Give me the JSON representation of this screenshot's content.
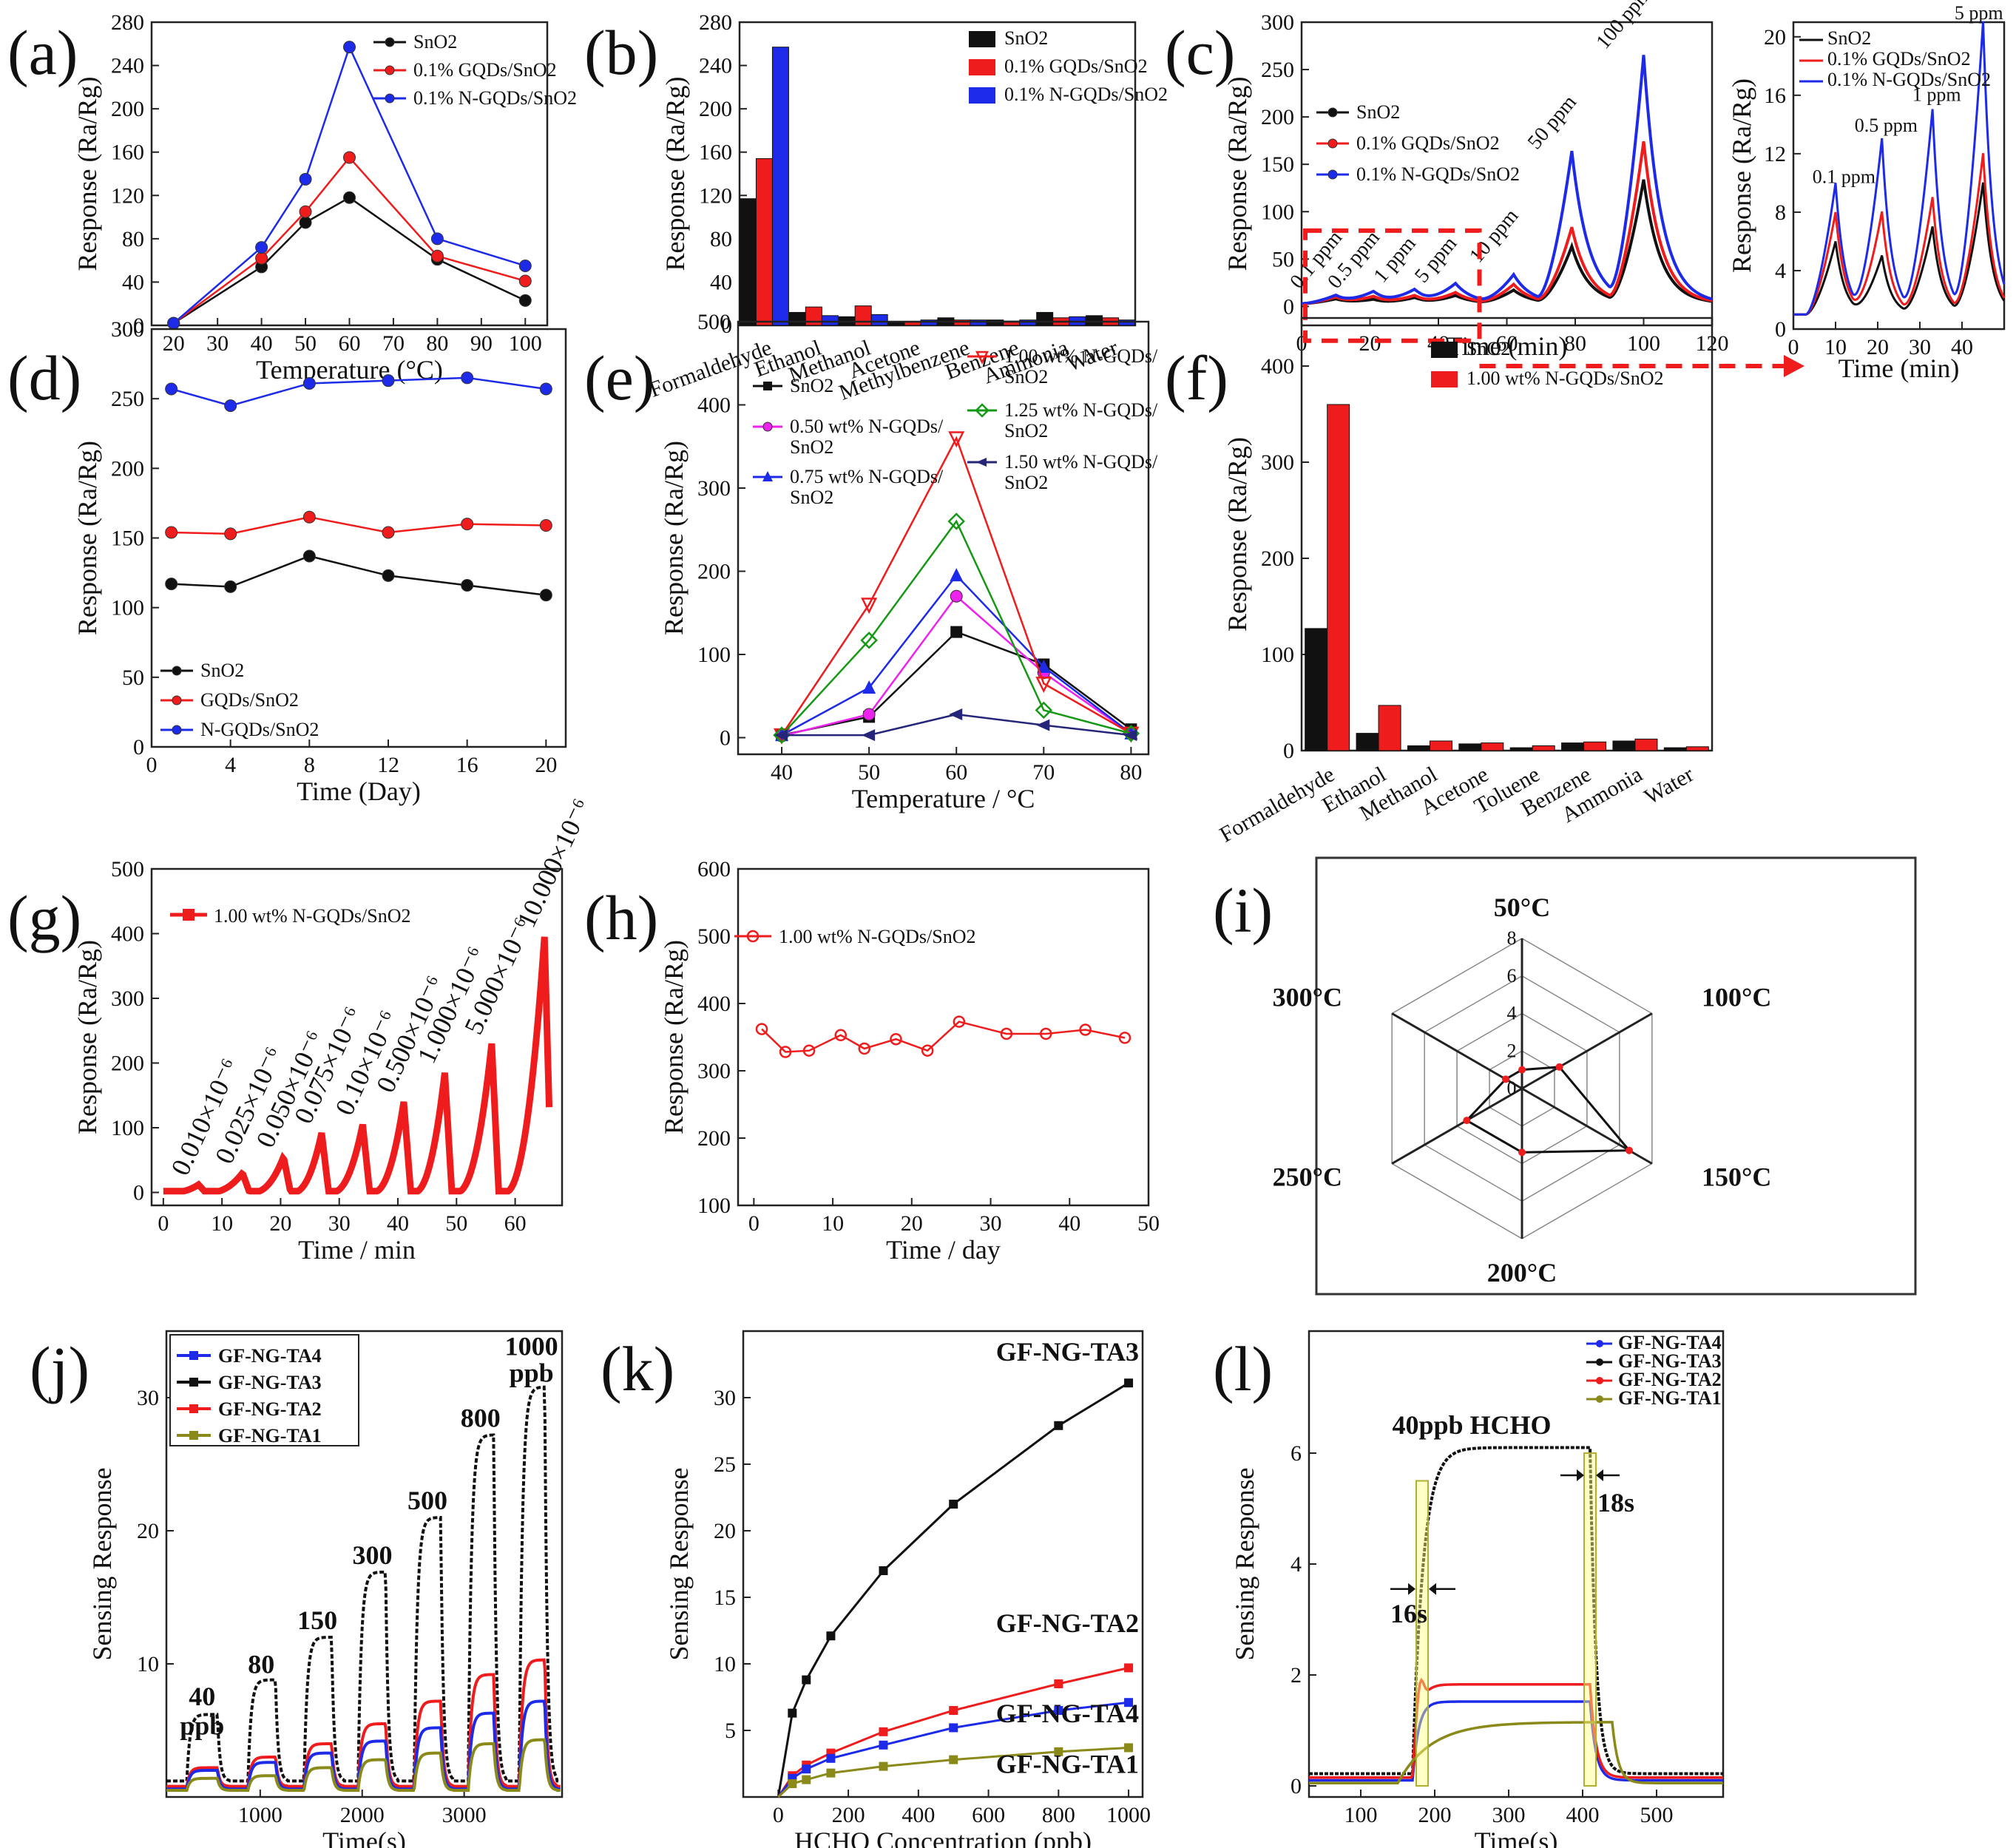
{
  "colors": {
    "black": "#111111",
    "red": "#ee1c1c",
    "blue": "#1d2be8",
    "olive": "#8a8a1a",
    "magenta": "#ee22ee",
    "green": "#159915",
    "navy": "#25257a"
  },
  "chart_data": [
    {
      "id": "a",
      "panel_label": "(a)",
      "type": "line",
      "xlabel": "Temperature (°C)",
      "ylabel": "Response (Ra/Rg)",
      "xlim": [
        15,
        105
      ],
      "ylim": [
        0,
        280
      ],
      "xticks": [
        20,
        30,
        40,
        50,
        60,
        70,
        80,
        90,
        100
      ],
      "yticks": [
        0,
        40,
        80,
        120,
        160,
        200,
        240,
        280
      ],
      "x": [
        20,
        40,
        50,
        60,
        80,
        100
      ],
      "series": [
        {
          "name": "SnO2",
          "color": "#111111",
          "marker": "circle",
          "values": [
            2,
            54,
            95,
            118,
            61,
            23
          ]
        },
        {
          "name": "0.1% GQDs/SnO2",
          "color": "#ee1c1c",
          "marker": "circle",
          "values": [
            2,
            62,
            105,
            155,
            64,
            41
          ]
        },
        {
          "name": "0.1% N-GQDs/SnO2",
          "color": "#1d2be8",
          "marker": "circle",
          "values": [
            2,
            72,
            135,
            257,
            80,
            55
          ]
        }
      ],
      "legend": "top-right"
    },
    {
      "id": "b",
      "panel_label": "(b)",
      "type": "bar",
      "xlabel": "",
      "ylabel": "Response (Ra/Rg)",
      "ylim": [
        0,
        280
      ],
      "yticks": [
        0,
        40,
        80,
        120,
        160,
        200,
        240,
        280
      ],
      "categories": [
        "Formaldehyde",
        "Ethanol",
        "Methanol",
        "Acetone",
        "Methylbenzene",
        "Benzene",
        "Ammonia",
        "Water"
      ],
      "series": [
        {
          "name": "SnO2",
          "color": "#111111",
          "values": [
            117,
            12,
            8,
            3,
            7,
            5,
            12,
            9
          ]
        },
        {
          "name": "0.1% GQDs/SnO2",
          "color": "#ee1c1c",
          "values": [
            154,
            17,
            18,
            3,
            5,
            4,
            7,
            7
          ]
        },
        {
          "name": "0.1% N-GQDs/SnO2",
          "color": "#1d2be8",
          "values": [
            257,
            9,
            10,
            5,
            5,
            5,
            8,
            5
          ]
        }
      ],
      "legend": "top-right"
    },
    {
      "id": "c",
      "panel_label": "(c)",
      "type": "line",
      "xlabel": "Time (min)",
      "ylabel": "Response (Ra/Rg)",
      "xlim": [
        0,
        120
      ],
      "ylim": [
        -20,
        300
      ],
      "xticks": [
        0,
        20,
        40,
        60,
        80,
        100,
        120
      ],
      "yticks": [
        0,
        50,
        100,
        150,
        200,
        250,
        300
      ],
      "pulses": [
        {
          "t": 10,
          "peak": [
            5,
            7,
            9
          ]
        },
        {
          "t": 21,
          "peak": [
            4,
            7,
            12
          ]
        },
        {
          "t": 33,
          "peak": [
            6,
            8,
            14
          ]
        },
        {
          "t": 45,
          "peak": [
            8,
            11,
            20
          ]
        },
        {
          "t": 62,
          "peak": [
            14,
            20,
            30
          ]
        },
        {
          "t": 79,
          "peak": [
            60,
            80,
            160
          ]
        },
        {
          "t": 100,
          "peak": [
            130,
            170,
            260
          ]
        }
      ],
      "annotations": [
        "0.1 ppm",
        "0.5 ppm",
        "1 ppm",
        "5 ppm",
        "10 ppm",
        "50 ppm",
        "100 ppm"
      ],
      "series": [
        {
          "name": "SnO2",
          "color": "#111111"
        },
        {
          "name": "0.1% GQDs/SnO2",
          "color": "#ee1c1c"
        },
        {
          "name": "0.1% N-GQDs/SnO2",
          "color": "#1d2be8"
        }
      ],
      "legend": "left"
    },
    {
      "id": "c2",
      "panel_label": "",
      "type": "line",
      "xlabel": "Time (min)",
      "ylabel": "Response (Ra/Rg)",
      "xlim": [
        0,
        50
      ],
      "ylim": [
        0,
        21
      ],
      "xticks": [
        0,
        10,
        20,
        30,
        40
      ],
      "yticks": [
        0,
        4,
        8,
        12,
        16,
        20
      ],
      "pulses": [
        {
          "t": 10,
          "peak": [
            5,
            7,
            9
          ]
        },
        {
          "t": 21,
          "peak": [
            4,
            7,
            12
          ]
        },
        {
          "t": 33,
          "peak": [
            6,
            8,
            14
          ]
        },
        {
          "t": 45,
          "peak": [
            9,
            11,
            20
          ]
        }
      ],
      "annotations": [
        "0.1 ppm",
        "0.5 ppm",
        "1 ppm",
        "5 ppm"
      ],
      "series": [
        {
          "name": "SnO2",
          "color": "#111111"
        },
        {
          "name": "0.1% GQDs/SnO2",
          "color": "#ee1c1c"
        },
        {
          "name": "0.1% N-GQDs/SnO2",
          "color": "#1d2be8"
        }
      ],
      "legend": "top-left"
    },
    {
      "id": "d",
      "panel_label": "(d)",
      "type": "line",
      "xlabel": "Time (Day)",
      "ylabel": "Response (Ra/Rg)",
      "xlim": [
        0,
        21
      ],
      "ylim": [
        0,
        300
      ],
      "xticks": [
        0,
        4,
        8,
        12,
        16,
        20
      ],
      "yticks": [
        0,
        50,
        100,
        150,
        200,
        250,
        300
      ],
      "x": [
        1,
        4,
        8,
        12,
        16,
        20
      ],
      "series": [
        {
          "name": "SnO2",
          "color": "#111111",
          "marker": "circle",
          "values": [
            117,
            115,
            137,
            123,
            116,
            109
          ]
        },
        {
          "name": "GQDs/SnO2",
          "color": "#ee1c1c",
          "marker": "circle",
          "values": [
            154,
            153,
            165,
            154,
            160,
            159
          ]
        },
        {
          "name": "N-GQDs/SnO2",
          "color": "#1d2be8",
          "marker": "circle",
          "values": [
            257,
            245,
            261,
            263,
            265,
            257
          ]
        }
      ],
      "legend": "bottom-left"
    },
    {
      "id": "e",
      "panel_label": "(e)",
      "type": "line",
      "xlabel": "Temperature / °C",
      "ylabel": "Response (Ra/Rg)",
      "xlim": [
        35,
        82
      ],
      "ylim": [
        -20,
        500
      ],
      "xticks": [
        40,
        50,
        60,
        70,
        80
      ],
      "yticks": [
        0,
        100,
        200,
        300,
        400,
        500
      ],
      "x": [
        40,
        50,
        60,
        70,
        80
      ],
      "series": [
        {
          "name": "SnO2",
          "color": "#111111",
          "marker": "square",
          "values": [
            3,
            25,
            127,
            88,
            10
          ]
        },
        {
          "name": "0.50 wt% N-GQDs/ SnO2",
          "color": "#ee22ee",
          "marker": "circle",
          "values": [
            2,
            28,
            170,
            78,
            5
          ]
        },
        {
          "name": "0.75 wt% N-GQDs/ SnO2",
          "color": "#1d2be8",
          "marker": "triangle-up",
          "values": [
            3,
            60,
            195,
            85,
            5
          ]
        },
        {
          "name": "1.00 wt% N-GQDs/ SnO2",
          "color": "#ee1c1c",
          "marker": "triangle-down",
          "values": [
            3,
            160,
            360,
            65,
            5
          ]
        },
        {
          "name": "1.25 wt% N-GQDs/ SnO2",
          "color": "#159915",
          "marker": "diamond",
          "values": [
            3,
            117,
            260,
            33,
            5
          ]
        },
        {
          "name": "1.50 wt% N-GQDs/ SnO2",
          "color": "#25257a",
          "marker": "triangle-left",
          "values": [
            3,
            3,
            28,
            15,
            3
          ]
        }
      ],
      "legend": "top"
    },
    {
      "id": "f",
      "panel_label": "(f)",
      "type": "bar",
      "xlabel": "",
      "ylabel": "Response (Ra/Rg)",
      "ylim": [
        0,
        450
      ],
      "yticks": [
        0,
        100,
        200,
        300,
        400
      ],
      "categories": [
        "Formaldehyde",
        "Ethanol",
        "Methanol",
        "Acetone",
        "Toluene",
        "Benzene",
        "Ammonia",
        "Water"
      ],
      "series": [
        {
          "name": "SnO2",
          "color": "#111111",
          "values": [
            127,
            18,
            5,
            7,
            3,
            8,
            10,
            3
          ]
        },
        {
          "name": "1.00 wt% N-GQDs/SnO2",
          "color": "#ee1c1c",
          "values": [
            360,
            47,
            10,
            8,
            5,
            9,
            12,
            4
          ]
        }
      ],
      "legend": "top-right"
    },
    {
      "id": "g",
      "panel_label": "(g)",
      "type": "line",
      "xlabel": "Time / min",
      "ylabel": "Response (Ra/Rg)",
      "xlim": [
        -2,
        68
      ],
      "ylim": [
        -20,
        500
      ],
      "xticks": [
        0,
        10,
        20,
        30,
        40,
        50,
        60
      ],
      "yticks": [
        0,
        100,
        200,
        300,
        400,
        500
      ],
      "pulses": [
        {
          "t": 6,
          "peak": 12
        },
        {
          "t": 13.5,
          "peak": 30
        },
        {
          "t": 20.5,
          "peak": 55
        },
        {
          "t": 27,
          "peak": 92
        },
        {
          "t": 34,
          "peak": 105
        },
        {
          "t": 41,
          "peak": 140
        },
        {
          "t": 48,
          "peak": 185
        },
        {
          "t": 56,
          "peak": 230
        },
        {
          "t": 65,
          "peak": 395
        }
      ],
      "annotations": [
        "0.010×10⁻⁶",
        "0.025×10⁻⁶",
        "0.050×10⁻⁶",
        "0.075×10⁻⁶",
        "0.10×10⁻⁶",
        "0.500×10⁻⁶",
        "1.000×10⁻⁶",
        "5.000×10⁻⁶",
        "10.000×10⁻⁶"
      ],
      "series": [
        {
          "name": "1.00 wt% N-GQDs/SnO2",
          "color": "#ee1c1c"
        }
      ],
      "legend": "top-left"
    },
    {
      "id": "h",
      "panel_label": "(h)",
      "type": "line",
      "xlabel": "Time / day",
      "ylabel": "Response (Ra/Rg)",
      "xlim": [
        -2,
        50
      ],
      "ylim": [
        100,
        600
      ],
      "xticks": [
        0,
        10,
        20,
        30,
        40,
        50
      ],
      "yticks": [
        100,
        200,
        300,
        400,
        500,
        600
      ],
      "x": [
        1,
        4,
        7,
        11,
        14,
        18,
        22,
        26,
        32,
        37,
        42,
        47
      ],
      "series": [
        {
          "name": "1.00 wt% N-GQDs/SnO2",
          "color": "#ee1c1c",
          "marker": "circle",
          "values": [
            362,
            328,
            330,
            353,
            333,
            347,
            330,
            373,
            355,
            355,
            361,
            349
          ]
        }
      ],
      "legend": "top-left"
    },
    {
      "id": "i",
      "panel_label": "(i)",
      "type": "radar",
      "axes": [
        "50°C",
        "100°C",
        "150°C",
        "200°C",
        "250°C",
        "300°C"
      ],
      "rmax": 8,
      "rticks": [
        0,
        2,
        4,
        6,
        8
      ],
      "values": [
        1,
        2.3,
        6.6,
        3.4,
        3.4,
        1
      ]
    },
    {
      "id": "j",
      "panel_label": "(j)",
      "type": "line",
      "xlabel": "Time(s)",
      "ylabel": "Sensing Response",
      "xlim": [
        80,
        3960
      ],
      "ylim": [
        0,
        35
      ],
      "xticks": [
        1000,
        2000,
        3000
      ],
      "yticks": [
        10,
        20,
        30
      ],
      "pulses": [
        {
          "start": 280,
          "end": 580,
          "peak": [
            6.2,
            2.2,
            2.0,
            1.4
          ]
        },
        {
          "start": 880,
          "end": 1150,
          "peak": [
            8.8,
            3.0,
            2.6,
            1.6
          ]
        },
        {
          "start": 1430,
          "end": 1700,
          "peak": [
            12.0,
            4.0,
            3.3,
            2.2
          ]
        },
        {
          "start": 1960,
          "end": 2230,
          "peak": [
            16.9,
            5.5,
            4.2,
            2.8
          ]
        },
        {
          "start": 2510,
          "end": 2770,
          "peak": [
            21.0,
            7.2,
            5.2,
            3.3
          ]
        },
        {
          "start": 3040,
          "end": 3290,
          "peak": [
            27.2,
            9.2,
            6.3,
            4.0
          ]
        },
        {
          "start": 3540,
          "end": 3790,
          "peak": [
            30.8,
            10.3,
            7.2,
            4.3
          ]
        }
      ],
      "annotations": [
        "40",
        "ppb",
        "80",
        "150",
        "300",
        "500",
        "800",
        "1000",
        "ppb"
      ],
      "series": [
        {
          "name": "GF-NG-TA3",
          "color": "#111111"
        },
        {
          "name": "GF-NG-TA2",
          "color": "#ee1c1c"
        },
        {
          "name": "GF-NG-TA4",
          "color": "#1d2be8"
        },
        {
          "name": "GF-NG-TA1",
          "color": "#8a8a1a"
        }
      ],
      "legend": "top-left"
    },
    {
      "id": "k",
      "panel_label": "(k)",
      "type": "line",
      "xlabel": "HCHO Concentration (ppb)",
      "ylabel": "Sensing Response",
      "xlim": [
        -100,
        1040
      ],
      "ylim": [
        0,
        35
      ],
      "xticks": [
        0,
        200,
        400,
        600,
        800,
        1000
      ],
      "yticks": [
        5,
        10,
        15,
        20,
        25,
        30
      ],
      "x": [
        0,
        40,
        80,
        150,
        300,
        500,
        800,
        1000
      ],
      "series": [
        {
          "name": "GF-NG-TA3",
          "color": "#111111",
          "marker": "square",
          "values": [
            0,
            6.3,
            8.8,
            12.1,
            17.0,
            22.0,
            27.9,
            31.1
          ]
        },
        {
          "name": "GF-NG-TA2",
          "color": "#ee1c1c",
          "marker": "square",
          "values": [
            0,
            1.6,
            2.4,
            3.3,
            4.9,
            6.5,
            8.5,
            9.7
          ]
        },
        {
          "name": "GF-NG-TA4",
          "color": "#1d2be8",
          "marker": "square",
          "values": [
            0,
            1.4,
            2.1,
            2.9,
            3.9,
            5.2,
            6.5,
            7.1
          ]
        },
        {
          "name": "GF-NG-TA1",
          "color": "#8a8a1a",
          "marker": "square",
          "values": [
            0,
            1.0,
            1.3,
            1.8,
            2.3,
            2.8,
            3.4,
            3.7
          ]
        }
      ],
      "legend": "inline"
    },
    {
      "id": "l",
      "panel_label": "(l)",
      "type": "line",
      "xlabel": "Time(s)",
      "ylabel": "Sensing Response",
      "xlim": [
        30,
        590
      ],
      "ylim": [
        -0.2,
        8.2
      ],
      "xticks": [
        100,
        200,
        300,
        400,
        500
      ],
      "yticks": [
        0,
        2,
        4,
        6
      ],
      "series": [
        {
          "name": "GF-NG-TA4",
          "color": "#1d2be8",
          "plateau": 1.52
        },
        {
          "name": "GF-NG-TA3",
          "color": "#111111",
          "plateau": 6.1
        },
        {
          "name": "GF-NG-TA2",
          "color": "#ee1c1c",
          "plateau": 1.83
        },
        {
          "name": "GF-NG-TA1",
          "color": "#8a8a1a",
          "plateau": 1.15
        }
      ],
      "annotations": [
        "40ppb HCHO",
        "16s",
        "18s"
      ],
      "legend": "top-right"
    }
  ]
}
